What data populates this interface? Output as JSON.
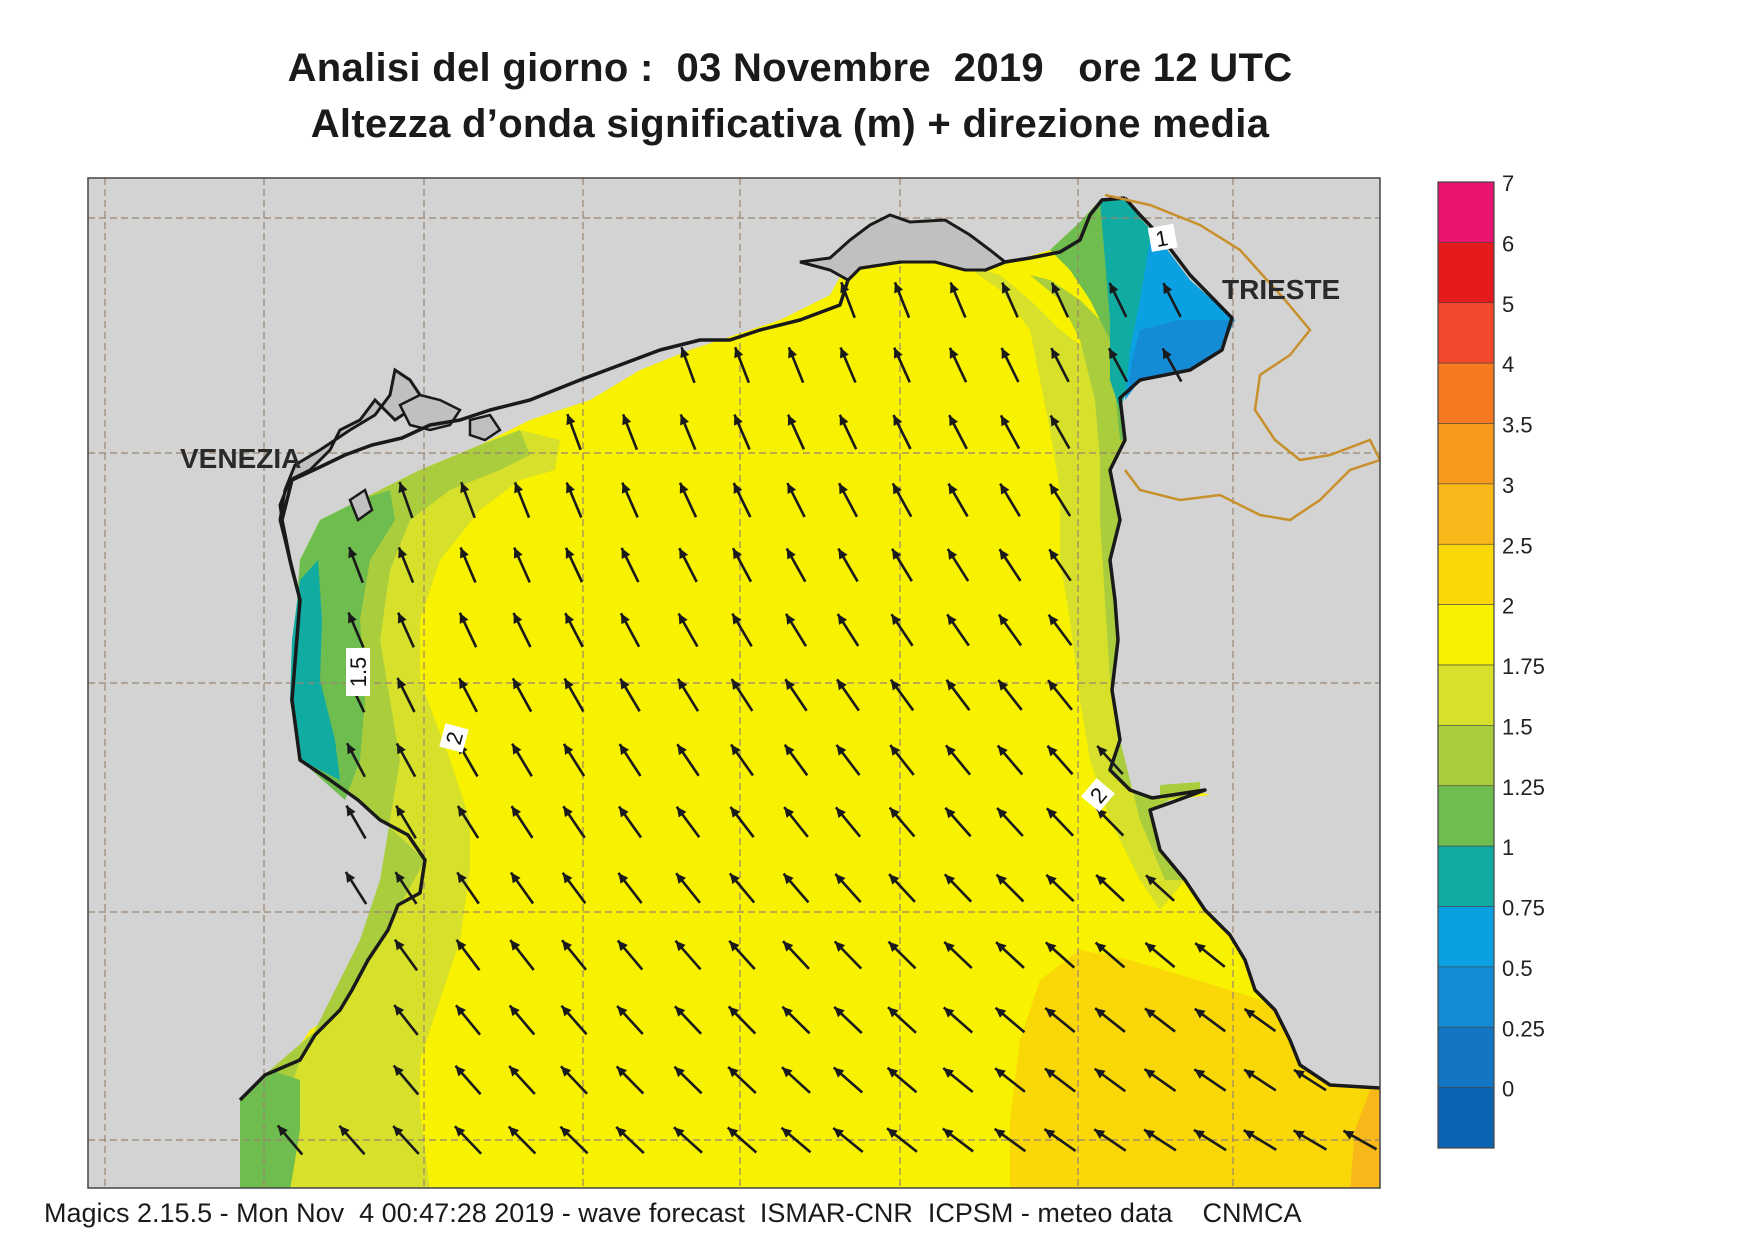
{
  "header": {
    "title_line1": "Analisi del giorno :  03 Novembre  2019   ore 12 UTC",
    "title_line2": "Altezza d’onda significativa (m) + direzione media"
  },
  "places": {
    "venice": "VENEZIA",
    "trieste": "TRIESTE"
  },
  "contour_labels": [
    "1",
    "1.5",
    "2",
    "2"
  ],
  "legend": {
    "levels": [
      "7",
      "6",
      "5",
      "4",
      "3.5",
      "3",
      "2.5",
      "2",
      "1.75",
      "1.5",
      "1.25",
      "1",
      "0.75",
      "0.5",
      "0.25",
      "0"
    ],
    "colors": [
      "#e8146e",
      "#e41a1c",
      "#f2482b",
      "#f6781f",
      "#f89a1c",
      "#f8b819",
      "#fad808",
      "#f8f100",
      "#d7e02a",
      "#a9cd3c",
      "#6fbc4f",
      "#10aca2",
      "#0aa0e1",
      "#158bd6",
      "#1376c4",
      "#0b63b4"
    ]
  },
  "colors": {
    "land": "#d3d3d3",
    "sea_main": "#f8f100",
    "coast_line": "#1a1a1a",
    "border_line": "#c8902a",
    "grid_line": "#9a8570"
  },
  "wave_direction": "NNW",
  "footer": "Magics 2.15.5 - Mon Nov  4 00:47:28 2019 - wave forecast  ISMAR-CNR  ICPSM - meteo data    CNMCA"
}
